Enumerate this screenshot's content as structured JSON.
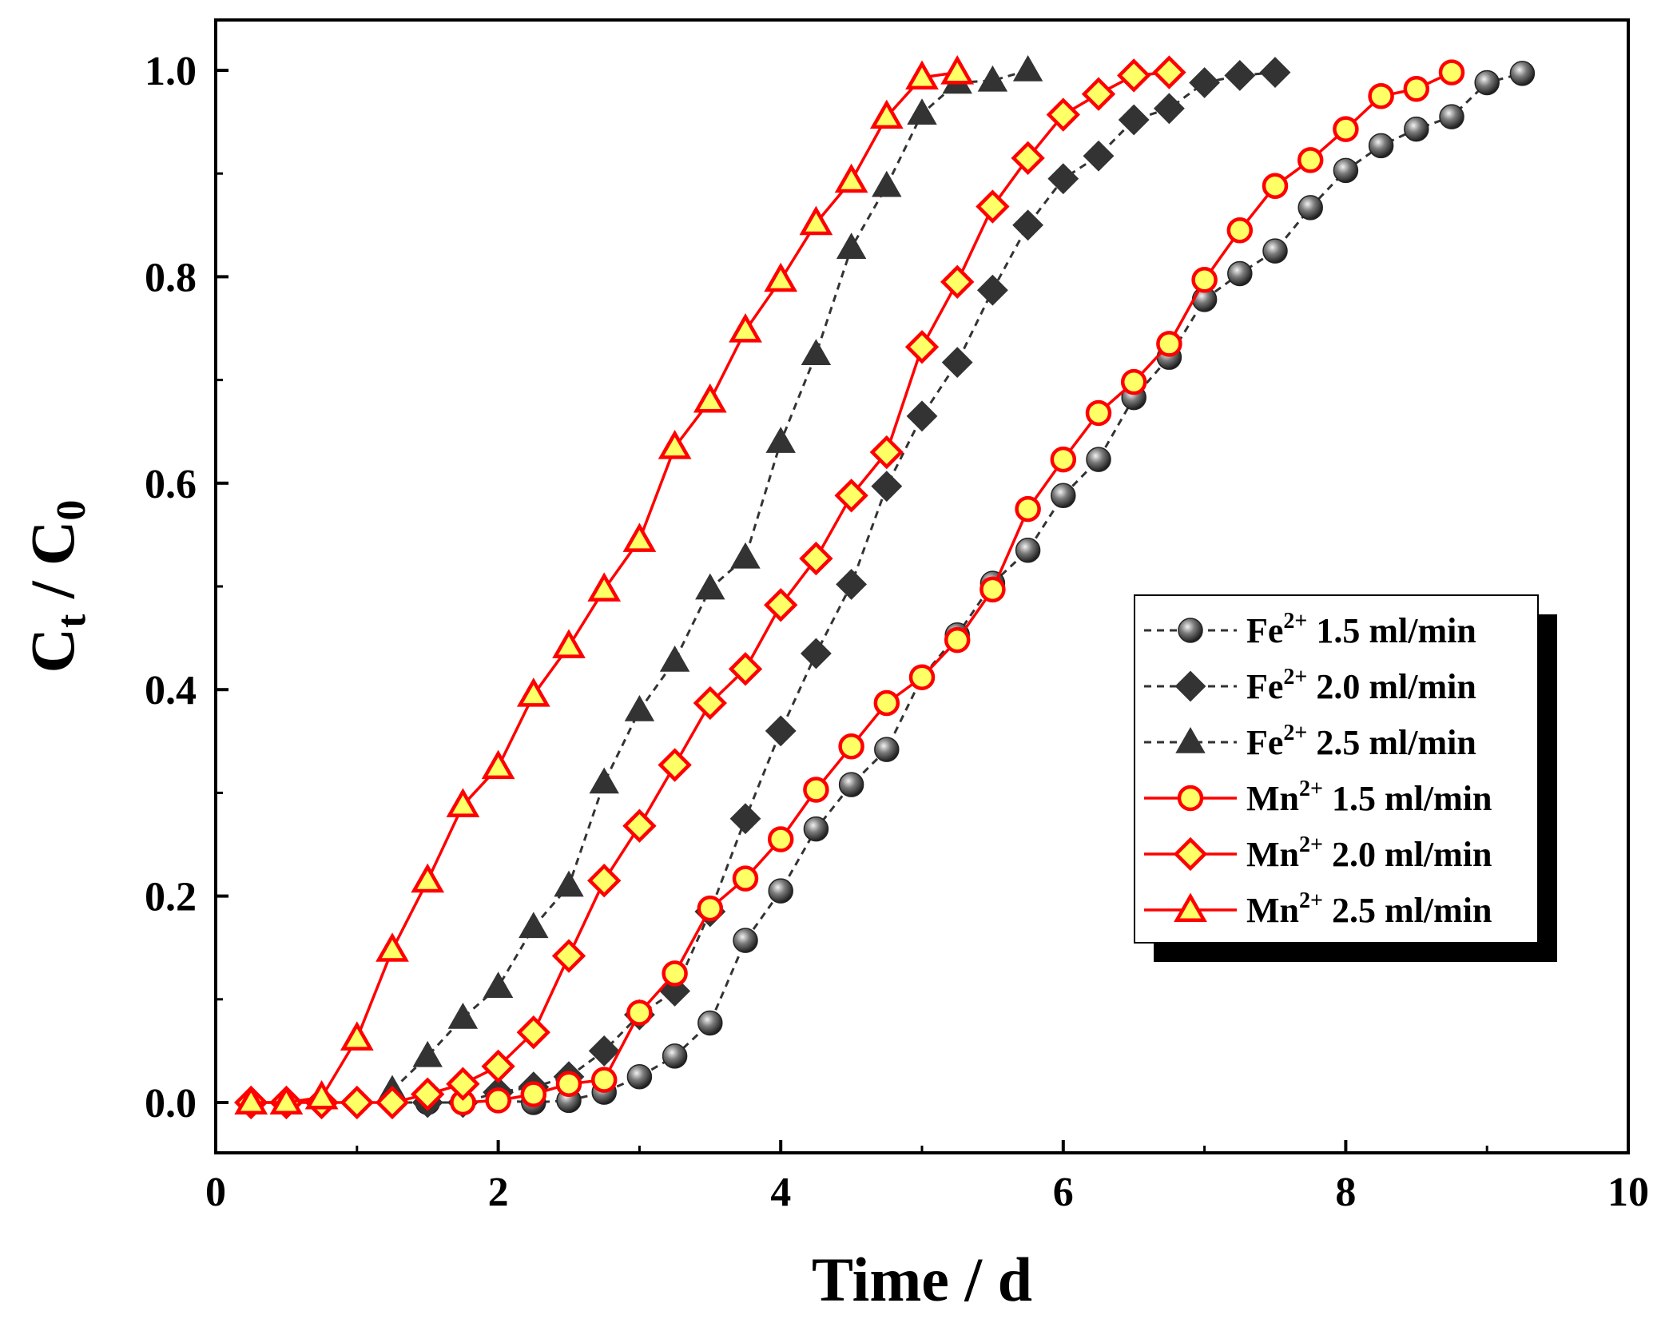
{
  "chart_data": {
    "type": "line",
    "title": "",
    "xlabel": "Time / d",
    "ylabel": {
      "main": "C",
      "sub1": "t",
      "sep": " / C",
      "sub2": "0"
    },
    "xlim": [
      0,
      10
    ],
    "ylim": [
      -0.05,
      1.05
    ],
    "xticks": [
      "0",
      "2",
      "4",
      "6",
      "8",
      "10"
    ],
    "yticks": [
      "0.0",
      "0.2",
      "0.4",
      "0.6",
      "0.8",
      "1.0"
    ],
    "xtick_values": [
      0,
      2,
      4,
      6,
      8,
      10
    ],
    "ytick_values": [
      0,
      0.2,
      0.4,
      0.6,
      0.8,
      1.0
    ],
    "grid": false,
    "legend_position": "right",
    "series": [
      {
        "name": "Fe2+ 1.5 ml/min",
        "ion": "Fe",
        "charge": "2+",
        "flow": "1.5 ml/min",
        "marker": "sphere",
        "line": "dashed",
        "color": "#333333",
        "x": [
          1.5,
          1.75,
          2.0,
          2.25,
          2.5,
          2.75,
          3.0,
          3.25,
          3.5,
          3.75,
          4.0,
          4.25,
          4.5,
          4.75,
          5.0,
          5.25,
          5.5,
          5.75,
          6.0,
          6.25,
          6.5,
          6.75,
          7.0,
          7.25,
          7.5,
          7.75,
          8.0,
          8.25,
          8.5,
          8.75,
          9.0,
          9.25
        ],
        "y": [
          0.0,
          0.0,
          0.002,
          0.0,
          0.002,
          0.01,
          0.025,
          0.045,
          0.077,
          0.157,
          0.205,
          0.265,
          0.308,
          0.342,
          0.412,
          0.453,
          0.503,
          0.535,
          0.588,
          0.623,
          0.683,
          0.722,
          0.778,
          0.803,
          0.825,
          0.867,
          0.903,
          0.927,
          0.943,
          0.955,
          0.988,
          0.997
        ]
      },
      {
        "name": "Fe2+ 2.0 ml/min",
        "ion": "Fe",
        "charge": "2+",
        "flow": "2.0 ml/min",
        "marker": "diamond",
        "line": "dashed",
        "color": "#333333",
        "x": [
          1.25,
          1.5,
          1.75,
          2.0,
          2.25,
          2.5,
          2.75,
          3.0,
          3.25,
          3.5,
          3.75,
          4.0,
          4.25,
          4.5,
          4.75,
          5.0,
          5.25,
          5.5,
          5.75,
          6.0,
          6.25,
          6.5,
          6.75,
          7.0,
          7.25,
          7.5
        ],
        "y": [
          0.0,
          0.0,
          0.0,
          0.01,
          0.015,
          0.025,
          0.05,
          0.085,
          0.108,
          0.185,
          0.275,
          0.36,
          0.435,
          0.502,
          0.597,
          0.665,
          0.717,
          0.787,
          0.85,
          0.895,
          0.917,
          0.952,
          0.963,
          0.988,
          0.995,
          0.998
        ]
      },
      {
        "name": "Fe2+ 2.5 ml/min",
        "ion": "Fe",
        "charge": "2+",
        "flow": "2.5 ml/min",
        "marker": "triangle",
        "line": "dashed",
        "color": "#333333",
        "x": [
          1.25,
          1.5,
          1.75,
          2.0,
          2.25,
          2.5,
          2.75,
          3.0,
          3.25,
          3.5,
          3.75,
          4.0,
          4.25,
          4.5,
          4.75,
          5.0,
          5.25,
          5.5,
          5.75
        ],
        "y": [
          0.012,
          0.045,
          0.082,
          0.112,
          0.17,
          0.21,
          0.31,
          0.38,
          0.428,
          0.498,
          0.528,
          0.64,
          0.725,
          0.828,
          0.888,
          0.958,
          0.988,
          0.99,
          1.0
        ]
      },
      {
        "name": "Mn2+ 1.5 ml/min",
        "ion": "Mn",
        "charge": "2+",
        "flow": "1.5 ml/min",
        "marker": "circle",
        "line": "solid",
        "color": "#ff0000",
        "fill": "#ffff66",
        "x": [
          1.75,
          2.0,
          2.25,
          2.5,
          2.75,
          3.0,
          3.25,
          3.5,
          3.75,
          4.0,
          4.25,
          4.5,
          4.75,
          5.0,
          5.25,
          5.5,
          5.75,
          6.0,
          6.25,
          6.5,
          6.75,
          7.0,
          7.25,
          7.5,
          7.75,
          8.0,
          8.25,
          8.5,
          8.75
        ],
        "y": [
          0.0,
          0.002,
          0.008,
          0.018,
          0.022,
          0.087,
          0.125,
          0.188,
          0.217,
          0.255,
          0.303,
          0.345,
          0.387,
          0.412,
          0.448,
          0.497,
          0.575,
          0.623,
          0.668,
          0.698,
          0.735,
          0.797,
          0.845,
          0.888,
          0.913,
          0.943,
          0.975,
          0.982,
          0.998
        ]
      },
      {
        "name": "Mn2+ 2.0 ml/min",
        "ion": "Mn",
        "charge": "2+",
        "flow": "2.0 ml/min",
        "marker": "diamond",
        "line": "solid",
        "color": "#ff0000",
        "fill": "#ffff66",
        "x": [
          0.25,
          0.5,
          0.75,
          1.0,
          1.25,
          1.5,
          1.75,
          2.0,
          2.25,
          2.5,
          2.75,
          3.0,
          3.25,
          3.5,
          3.75,
          4.0,
          4.25,
          4.5,
          4.75,
          5.0,
          5.25,
          5.5,
          5.75,
          6.0,
          6.25,
          6.5,
          6.75
        ],
        "y": [
          0.0,
          0.0,
          0.0,
          0.0,
          0.0,
          0.008,
          0.018,
          0.035,
          0.068,
          0.142,
          0.215,
          0.268,
          0.327,
          0.387,
          0.42,
          0.482,
          0.527,
          0.588,
          0.63,
          0.732,
          0.795,
          0.868,
          0.915,
          0.957,
          0.977,
          0.995,
          0.998
        ]
      },
      {
        "name": "Mn2+ 2.5 ml/min",
        "ion": "Mn",
        "charge": "2+",
        "flow": "2.5 ml/min",
        "marker": "triangle",
        "line": "solid",
        "color": "#ff0000",
        "fill": "#ffff66",
        "x": [
          0.25,
          0.5,
          0.75,
          1.0,
          1.25,
          1.5,
          1.75,
          2.0,
          2.25,
          2.5,
          2.75,
          3.0,
          3.25,
          3.5,
          3.75,
          4.0,
          4.25,
          4.5,
          4.75,
          5.0,
          5.25
        ],
        "y": [
          0.0,
          0.0,
          0.005,
          0.062,
          0.148,
          0.215,
          0.288,
          0.325,
          0.395,
          0.442,
          0.497,
          0.545,
          0.635,
          0.68,
          0.748,
          0.797,
          0.852,
          0.893,
          0.955,
          0.993,
          0.998
        ]
      }
    ]
  }
}
